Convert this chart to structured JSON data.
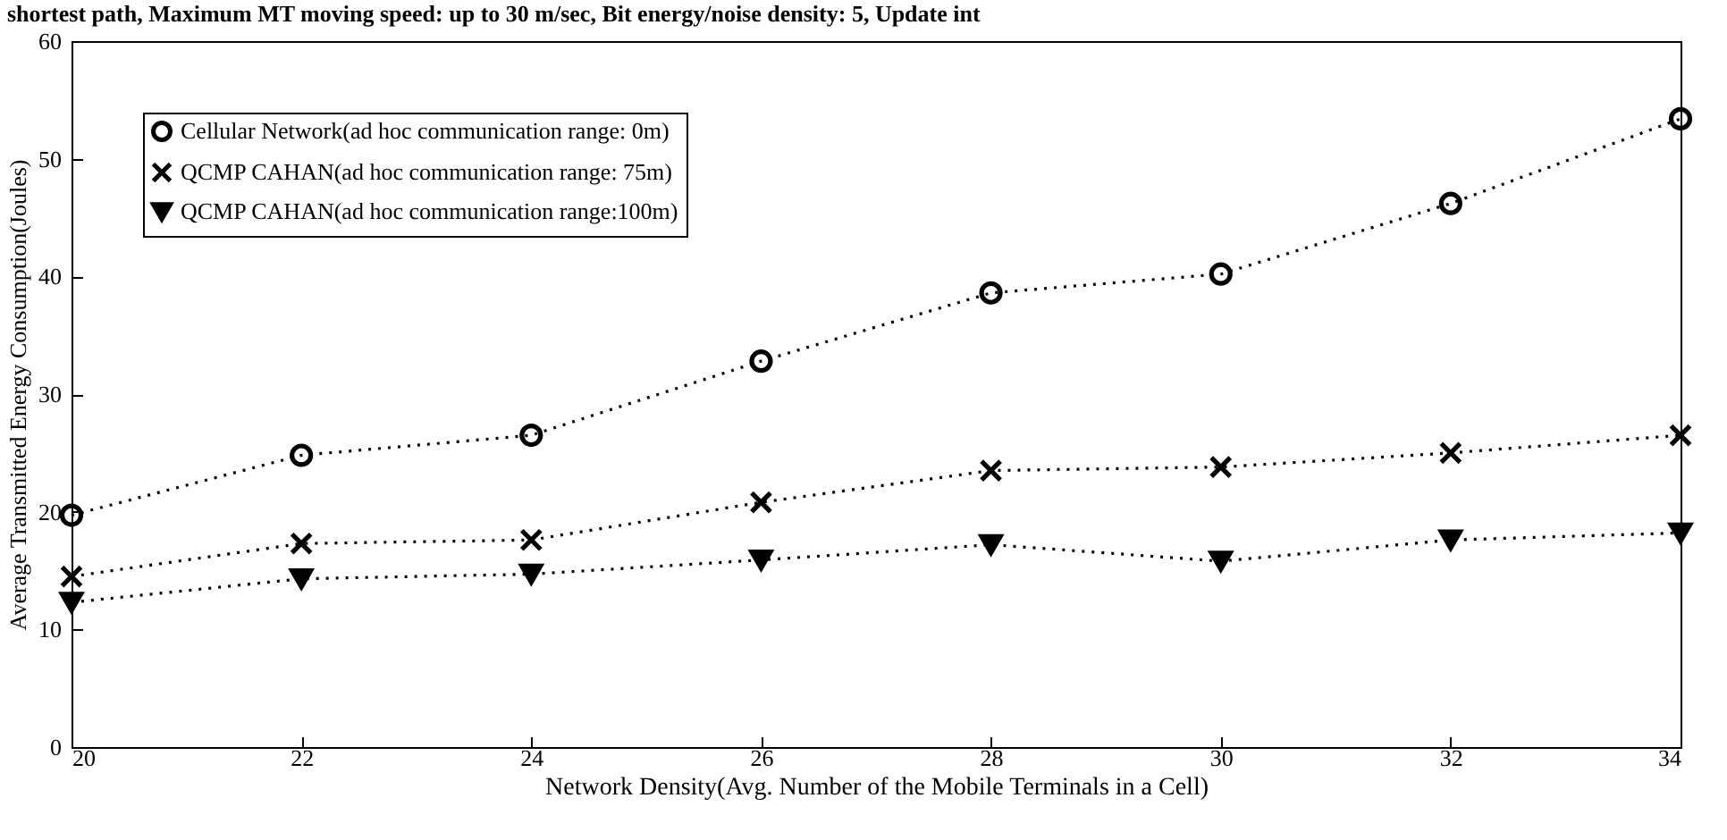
{
  "chart_data": {
    "type": "line",
    "title": "shortest path, Maximum MT moving speed: up to 30 m/sec, Bit energy/noise density: 5, Update int",
    "xlabel": "Network Density(Avg. Number of the Mobile Terminals in a Cell)",
    "ylabel": "Average Transmitted Energy Consumption(Joules)",
    "x": [
      20,
      22,
      24,
      26,
      28,
      30,
      32,
      34
    ],
    "xlim": [
      20,
      34
    ],
    "xticks": [
      20,
      22,
      24,
      26,
      28,
      30,
      32,
      34
    ],
    "ylim": [
      0,
      60
    ],
    "yticks": [
      0,
      10,
      20,
      30,
      40,
      50,
      60
    ],
    "grid": false,
    "legend": "top left",
    "line_style": "dotted",
    "series": [
      {
        "name": "Cellular Network(ad hoc communication range: 0m)",
        "color": "#000000",
        "marker": "circle",
        "values": [
          19.7,
          24.8,
          26.5,
          32.8,
          38.6,
          40.2,
          46.2,
          53.4
        ]
      },
      {
        "name": "QCMP CAHAN(ad hoc communication range: 75m)",
        "color": "#000000",
        "marker": "cross",
        "values": [
          14.5,
          17.3,
          17.6,
          20.8,
          23.5,
          23.8,
          25.0,
          26.5
        ]
      },
      {
        "name": "QCMP CAHAN(ad hoc communication range:100m)",
        "color": "#000000",
        "marker": "triangle",
        "values": [
          12.3,
          14.3,
          14.7,
          15.9,
          17.2,
          15.8,
          17.6,
          18.2
        ]
      }
    ]
  }
}
